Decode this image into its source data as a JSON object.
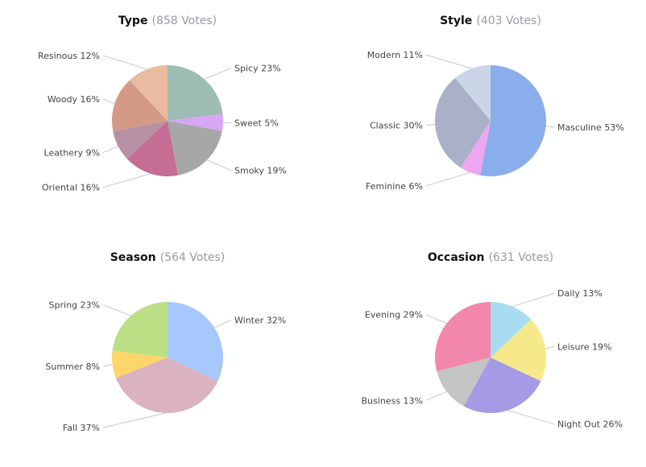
{
  "chart_data": [
    {
      "type": "pie",
      "title": "Type",
      "votes_text": "(858 Votes)",
      "slices": [
        {
          "label": "Spicy 23%",
          "value": 23,
          "color": "#9dbcb4",
          "label_side": "right"
        },
        {
          "label": "Sweet 5%",
          "value": 5,
          "color": "#d7a6f5",
          "label_side": "right"
        },
        {
          "label": "Smoky 19%",
          "value": 19,
          "color": "#a7a7a7",
          "label_side": "right"
        },
        {
          "label": "Oriental 16%",
          "value": 16,
          "color": "#c56d92",
          "label_side": "left"
        },
        {
          "label": "Leathery 9%",
          "value": 9,
          "color": "#b791a3",
          "label_side": "left"
        },
        {
          "label": "Woody 16%",
          "value": 16,
          "color": "#d49a86",
          "label_side": "left"
        },
        {
          "label": "Resinous 12%",
          "value": 12,
          "color": "#eabba0",
          "label_side": "left"
        }
      ]
    },
    {
      "type": "pie",
      "title": "Style",
      "votes_text": "(403 Votes)",
      "slices": [
        {
          "label": "Masculine 53%",
          "value": 53,
          "color": "#8aaeeb",
          "label_side": "right"
        },
        {
          "label": "Feminine 6%",
          "value": 6,
          "color": "#eea6f2",
          "label_side": "left"
        },
        {
          "label": "Classic 30%",
          "value": 30,
          "color": "#aab0c8",
          "label_side": "left"
        },
        {
          "label": "Modern 11%",
          "value": 11,
          "color": "#cbd5e8",
          "label_side": "left"
        }
      ]
    },
    {
      "type": "pie",
      "title": "Season",
      "votes_text": "(564 Votes)",
      "slices": [
        {
          "label": "Winter 32%",
          "value": 32,
          "color": "#a6c8fd",
          "label_side": "right"
        },
        {
          "label": "Fall 37%",
          "value": 37,
          "color": "#dbb2bf",
          "label_side": "left"
        },
        {
          "label": "Summer 8%",
          "value": 8,
          "color": "#fdd56a",
          "label_side": "left"
        },
        {
          "label": "Spring 23%",
          "value": 23,
          "color": "#bcdf85",
          "label_side": "left"
        }
      ]
    },
    {
      "type": "pie",
      "title": "Occasion",
      "votes_text": "(631 Votes)",
      "slices": [
        {
          "label": "Daily 13%",
          "value": 13,
          "color": "#a8dcf2",
          "label_side": "right"
        },
        {
          "label": "Leisure 19%",
          "value": 19,
          "color": "#f5e98a",
          "label_side": "right"
        },
        {
          "label": "Night Out 26%",
          "value": 26,
          "color": "#a49ae6",
          "label_side": "right"
        },
        {
          "label": "Business 13%",
          "value": 13,
          "color": "#c4c4c4",
          "label_side": "left"
        },
        {
          "label": "Evening 29%",
          "value": 29,
          "color": "#f386ac",
          "label_side": "left"
        }
      ]
    }
  ]
}
